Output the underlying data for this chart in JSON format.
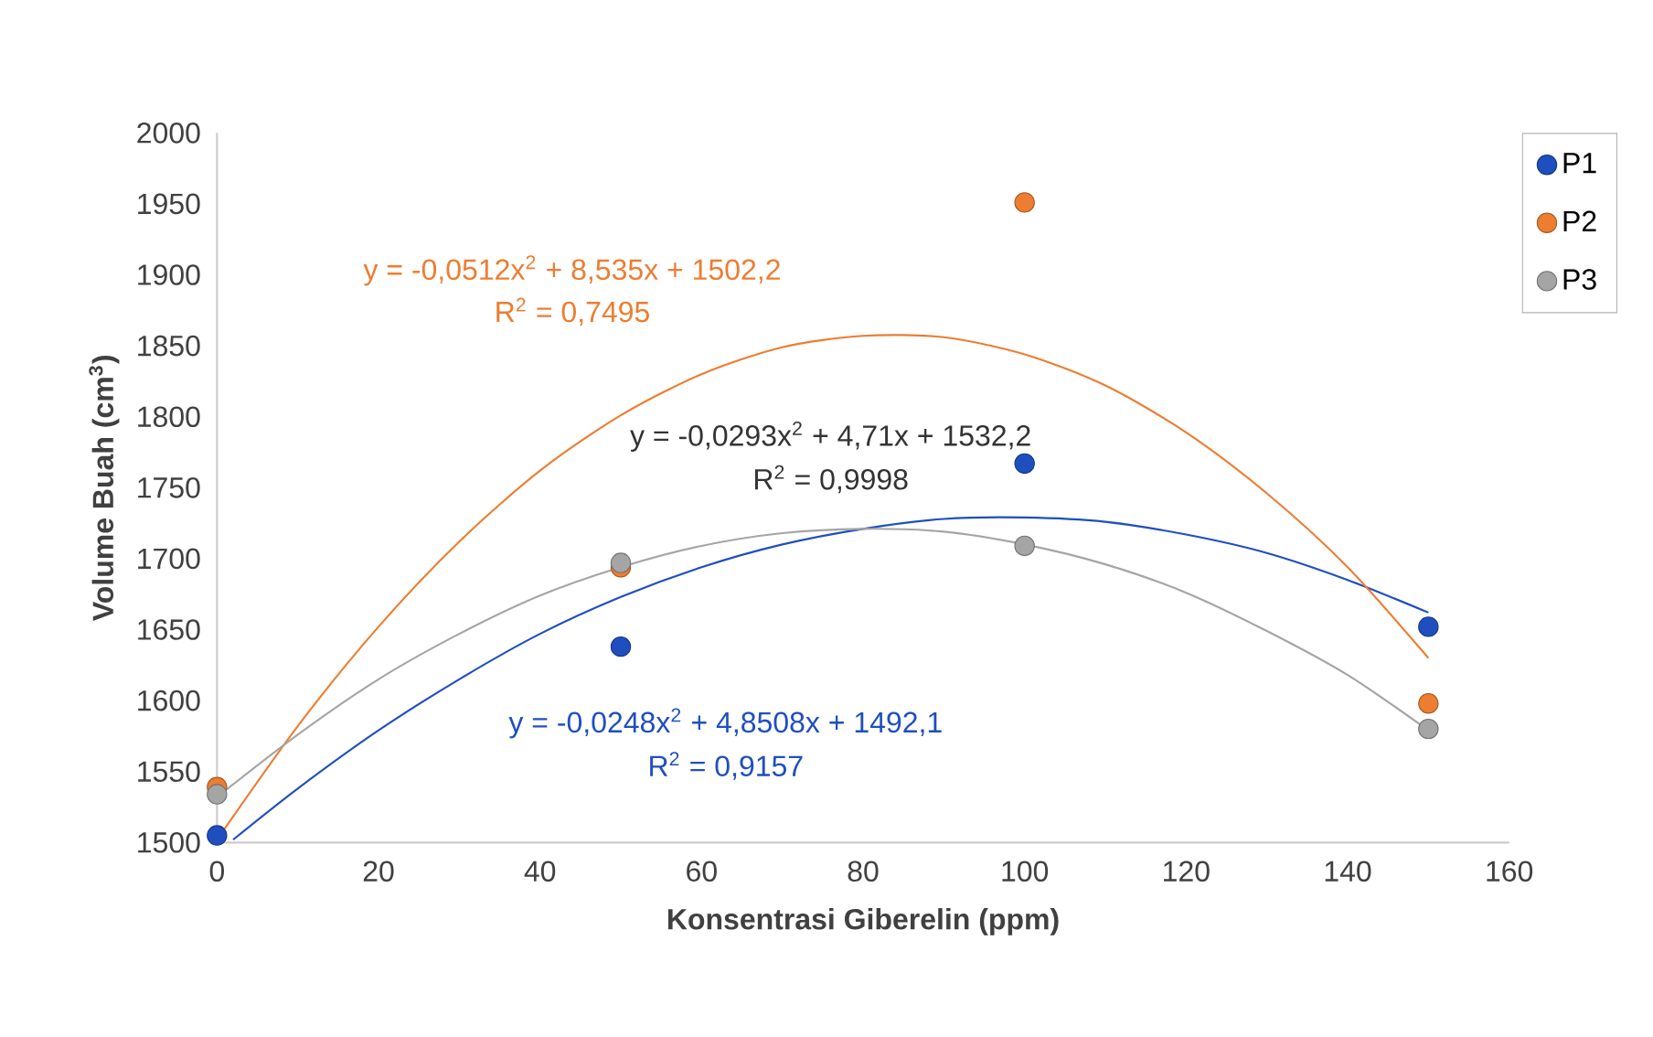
{
  "chart_data": {
    "type": "scatter",
    "xlabel": "Konsentrasi Giberelin (ppm)",
    "ylabel": "Volume Buah (cm$^{3}$)",
    "x": [
      0,
      50,
      100,
      150
    ],
    "xlim": [
      0,
      160
    ],
    "xticks": [
      0,
      20,
      40,
      60,
      80,
      100,
      120,
      140,
      160
    ],
    "ylim": [
      1500,
      2000
    ],
    "yticks": [
      1500,
      1550,
      1600,
      1650,
      1700,
      1750,
      1800,
      1850,
      1900,
      1950,
      2000
    ],
    "grid": false,
    "legend": "right",
    "marker": "circle",
    "series": [
      {
        "name": "P1",
        "color": "#1f4fbf",
        "values": [
          1505,
          1638,
          1767,
          1652
        ]
      },
      {
        "name": "P2",
        "color": "#ed7d31",
        "values": [
          1539,
          1694,
          1951,
          1598
        ]
      },
      {
        "name": "P3",
        "color": "#a5a5a5",
        "values": [
          1534,
          1697,
          1709,
          1580
        ]
      },
      {
        "type": "line",
        "color": "#1f4fbf",
        "marker": "none",
        "x": [
          2,
          10,
          20,
          30,
          40,
          50,
          60,
          70,
          80,
          90,
          100,
          110,
          120,
          130,
          140,
          150
        ],
        "values": [
          1502,
          1538,
          1579,
          1615,
          1647,
          1673,
          1694,
          1710,
          1721,
          1728,
          1729,
          1726,
          1717,
          1704,
          1685,
          1662
        ]
      },
      {
        "type": "line",
        "color": "#ed7d31",
        "marker": "none",
        "x": [
          0,
          10,
          20,
          30,
          40,
          50,
          60,
          70,
          80,
          90,
          100,
          110,
          120,
          130,
          140,
          150
        ],
        "values": [
          1502,
          1582,
          1652,
          1712,
          1762,
          1801,
          1830,
          1849,
          1857,
          1856,
          1844,
          1822,
          1789,
          1746,
          1694,
          1630
        ]
      },
      {
        "type": "line",
        "color": "#a5a5a5",
        "marker": "none",
        "x": [
          0,
          10,
          20,
          30,
          40,
          50,
          60,
          70,
          80,
          90,
          100,
          110,
          120,
          130,
          140,
          150
        ],
        "values": [
          1532,
          1576,
          1615,
          1647,
          1674,
          1694,
          1709,
          1718,
          1721,
          1719,
          1710,
          1696,
          1676,
          1649,
          1618,
          1579
        ]
      }
    ],
    "annotations": [
      "y = -0,0512x$^{2}$ + 8,535x + 1502,2",
      "R$^{2}$ = 0,7495",
      "y = -0,0293x$^{2}$ + 4,71x + 1532,2",
      "R$^{2}$ = 0,9998",
      "y = -0,0248x$^{2}$ + 4,8508x + 1492,1",
      "R$^{2}$ = 0,9157"
    ]
  }
}
